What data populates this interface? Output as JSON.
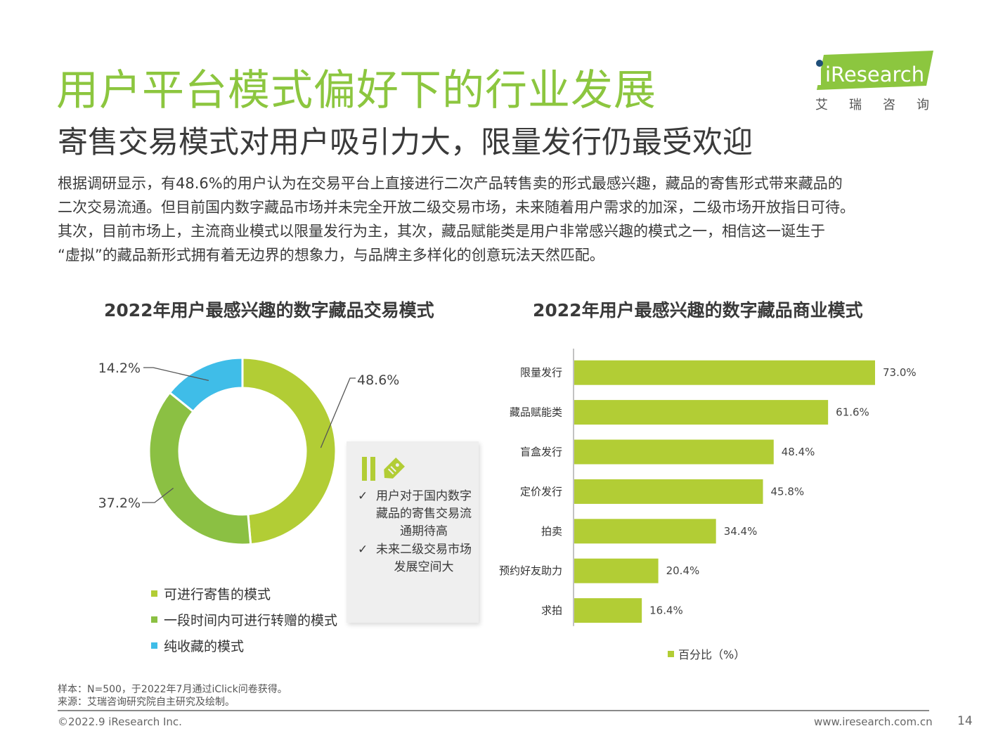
{
  "title": "用户平台模式偏好下的行业发展",
  "subtitle": "寄售交易模式对用户吸引力大，限量发行仍最受欢迎",
  "logo": {
    "brand": "iResearch",
    "cn": "艾瑞咨询"
  },
  "body_lines": [
    "根据调研显示，有48.6%的用户认为在交易平台上直接进行二次产品转售卖的形式最感兴趣，藏品的寄售形式带来藏品的",
    "二次交易流通。但目前国内数字藏品市场并未完全开放二级交易市场，未来随着用户需求的加深，二级市场开放指日可待。",
    "其次，目前市场上，主流商业模式以限量发行为主，其次，藏品赋能类是用户非常感兴趣的模式之一，相信这一诞生于",
    "“虚拟”的藏品新形式拥有着无边界的想象力，与品牌主多样化的创意玩法天然匹配。"
  ],
  "callout": {
    "items": [
      {
        "check": "✓",
        "text": "用户对于国内数字藏品的寄售交易流通期待高"
      },
      {
        "check": "✓",
        "text": "未来二级交易市场发展空间大"
      }
    ]
  },
  "chart_data": [
    {
      "type": "pie",
      "title": "2022年用户最感兴趣的数字藏品交易模式",
      "categories": [
        "可进行寄售的模式",
        "一段时间内可进行转赠的模式",
        "纯收藏的模式"
      ],
      "values": [
        48.6,
        37.2,
        14.2
      ],
      "labels": [
        "48.6%",
        "37.2%",
        "14.2%"
      ],
      "colors": [
        "#b2cd35",
        "#8bc043",
        "#3fbde8"
      ],
      "legend": "bottom-left"
    },
    {
      "type": "bar",
      "orientation": "horizontal",
      "title": "2022年用户最感兴趣的数字藏品商业模式",
      "categories": [
        "限量发行",
        "藏品赋能类",
        "盲盒发行",
        "定价发行",
        "拍卖",
        "预约好友助力",
        "求拍"
      ],
      "series": [
        {
          "name": "百分比（%）",
          "values": [
            73.0,
            61.6,
            48.4,
            45.8,
            34.4,
            20.4,
            16.4
          ]
        }
      ],
      "labels": [
        "73.0%",
        "61.6%",
        "48.4%",
        "45.8%",
        "34.4%",
        "20.4%",
        "16.4%"
      ],
      "color": "#b2cd35",
      "legend": "bottom"
    }
  ],
  "notes": [
    "样本：N=500，于2022年7月通过iClick问卷获得。",
    "来源：艾瑞咨询研究院自主研究及绘制。"
  ],
  "footer": {
    "copyright": "©2022.9 iResearch Inc.",
    "website": "www.iresearch.com.cn",
    "page": "14"
  }
}
